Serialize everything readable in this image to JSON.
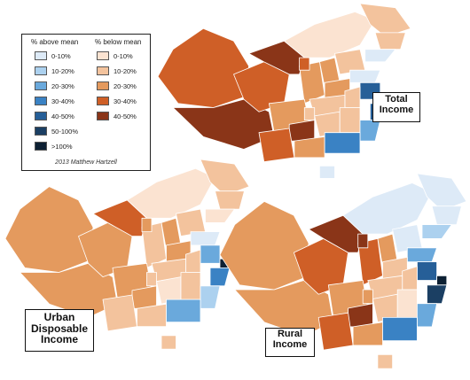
{
  "titles": {
    "total": [
      "Total",
      "Income"
    ],
    "urban": [
      "Urban",
      "Disposable",
      "Income"
    ],
    "rural": [
      "Rural",
      "Income"
    ]
  },
  "legend": {
    "above_header": "% above mean",
    "below_header": "% below mean",
    "above": [
      {
        "label": "0-10%",
        "color": "#ddeaf7"
      },
      {
        "label": "10-20%",
        "color": "#acd1ef"
      },
      {
        "label": "20-30%",
        "color": "#6aa9dc"
      },
      {
        "label": "30-40%",
        "color": "#3a82c4"
      },
      {
        "label": "40-50%",
        "color": "#265f98"
      },
      {
        "label": "50-100%",
        "color": "#1b3f63"
      },
      {
        "label": ">100%",
        "color": "#0d2033"
      }
    ],
    "below": [
      {
        "label": "0-10%",
        "color": "#fbe3d1"
      },
      {
        "label": "10-20%",
        "color": "#f3c39d"
      },
      {
        "label": "20-30%",
        "color": "#e49a5e"
      },
      {
        "label": "30-40%",
        "color": "#cf5f27"
      },
      {
        "label": "40-50%",
        "color": "#8a3518"
      }
    ],
    "credit": "2013 Matthew Hartzell"
  }
}
